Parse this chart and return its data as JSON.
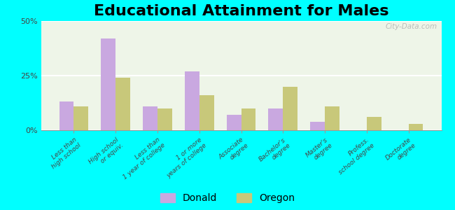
{
  "title": "Educational Attainment for Males",
  "categories": [
    "Less than\nhigh school",
    "High school\nor equiv.",
    "Less than\n1 year of college",
    "1 or more\nyears of college",
    "Associate\ndegree",
    "Bachelor's\ndegree",
    "Master's\ndegree",
    "Profess.\nschool degree",
    "Doctorate\ndegree"
  ],
  "donald": [
    13,
    42,
    11,
    27,
    7,
    10,
    4,
    0,
    0
  ],
  "oregon": [
    11,
    24,
    10,
    16,
    10,
    20,
    11,
    6,
    3
  ],
  "donald_color": "#c9a8e0",
  "oregon_color": "#c8c87a",
  "bg_color": "#00ffff",
  "plot_bg_color": "#eef5e8",
  "ylim": [
    0,
    50
  ],
  "yticks": [
    0,
    25,
    50
  ],
  "ytick_labels": [
    "0%",
    "25%",
    "50%"
  ],
  "bar_width": 0.35,
  "title_fontsize": 16,
  "watermark": "City-Data.com"
}
